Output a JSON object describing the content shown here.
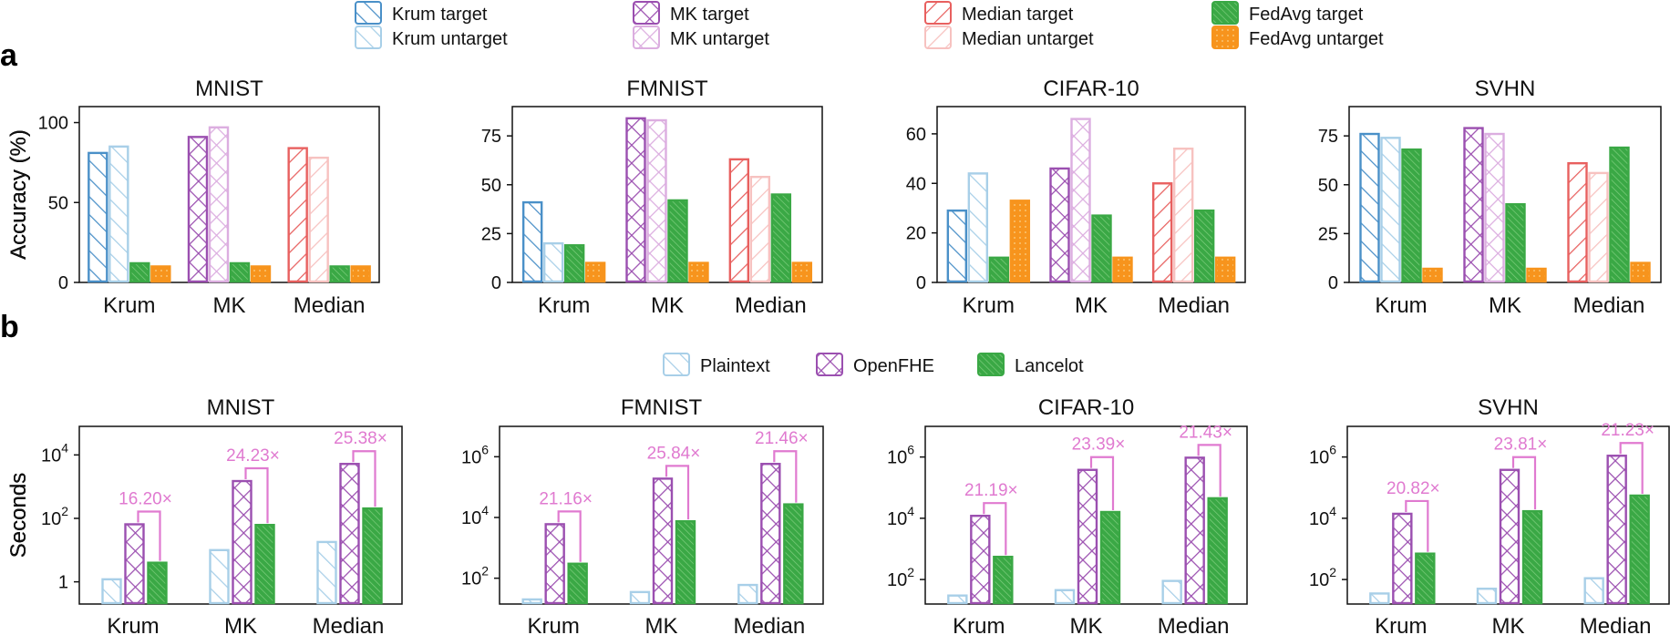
{
  "panel_a_label": "a",
  "panel_b_label": "b",
  "colors": {
    "krum": "#4a90c8",
    "krum_light": "#a8cfe8",
    "mk": "#9b4fb0",
    "mk_light": "#dcaee0",
    "median": "#e8605f",
    "median_light": "#f7c2c0",
    "fedavg": "#3aa845",
    "fedavg_fill": "#7fcf7f",
    "fedavg_untarget": "#f7941d",
    "annotation": "#e07ad0"
  },
  "legend_a": [
    {
      "label": "Krum target",
      "key": "krum_target"
    },
    {
      "label": "Krum untarget",
      "key": "krum_untarget"
    },
    {
      "label": "MK target",
      "key": "mk_target"
    },
    {
      "label": "MK untarget",
      "key": "mk_untarget"
    },
    {
      "label": "Median target",
      "key": "median_target"
    },
    {
      "label": "Median untarget",
      "key": "median_untarget"
    },
    {
      "label": "FedAvg target",
      "key": "fedavg_target"
    },
    {
      "label": "FedAvg untarget",
      "key": "fedavg_untarget"
    }
  ],
  "legend_b": [
    {
      "label": "Plaintext",
      "key": "plaintext"
    },
    {
      "label": "OpenFHE",
      "key": "openfhe"
    },
    {
      "label": "Lancelot",
      "key": "lancelot"
    }
  ],
  "chart_data": [
    {
      "panel": "a",
      "type": "bar",
      "title": "MNIST",
      "ylabel": "Accuracy (%)",
      "categories": [
        "Krum",
        "MK",
        "Median"
      ],
      "ylim": [
        0,
        110
      ],
      "yticks": [
        0,
        50,
        100
      ],
      "groups": [
        {
          "target": 81,
          "untarget": 85,
          "fedavg_target": 12,
          "fedavg_untarget": 10
        },
        {
          "target": 91,
          "untarget": 97,
          "fedavg_target": 12,
          "fedavg_untarget": 10
        },
        {
          "target": 84,
          "untarget": 78,
          "fedavg_target": 10,
          "fedavg_untarget": 10
        }
      ]
    },
    {
      "panel": "a",
      "type": "bar",
      "title": "FMNIST",
      "ylabel": "Accuracy (%)",
      "categories": [
        "Krum",
        "MK",
        "Median"
      ],
      "ylim": [
        0,
        90
      ],
      "yticks": [
        0,
        25,
        50,
        75
      ],
      "groups": [
        {
          "target": 41,
          "untarget": 20,
          "fedavg_target": 19,
          "fedavg_untarget": 10
        },
        {
          "target": 84,
          "untarget": 83,
          "fedavg_target": 42,
          "fedavg_untarget": 10
        },
        {
          "target": 63,
          "untarget": 54,
          "fedavg_target": 45,
          "fedavg_untarget": 10
        }
      ]
    },
    {
      "panel": "a",
      "type": "bar",
      "title": "CIFAR-10",
      "ylabel": "Accuracy (%)",
      "categories": [
        "Krum",
        "MK",
        "Median"
      ],
      "ylim": [
        0,
        71
      ],
      "yticks": [
        0,
        20,
        40,
        60
      ],
      "groups": [
        {
          "target": 29,
          "untarget": 44,
          "fedavg_target": 10,
          "fedavg_untarget": 33
        },
        {
          "target": 46,
          "untarget": 66,
          "fedavg_target": 27,
          "fedavg_untarget": 10
        },
        {
          "target": 40,
          "untarget": 54,
          "fedavg_target": 29,
          "fedavg_untarget": 10
        }
      ]
    },
    {
      "panel": "a",
      "type": "bar",
      "title": "SVHN",
      "ylabel": "Accuracy (%)",
      "categories": [
        "Krum",
        "MK",
        "Median"
      ],
      "ylim": [
        0,
        90
      ],
      "yticks": [
        0,
        25,
        50,
        75
      ],
      "groups": [
        {
          "target": 76,
          "untarget": 74,
          "fedavg_target": 68,
          "fedavg_untarget": 7
        },
        {
          "target": 79,
          "untarget": 76,
          "fedavg_target": 40,
          "fedavg_untarget": 7
        },
        {
          "target": 61,
          "untarget": 56,
          "fedavg_target": 69,
          "fedavg_untarget": 10
        }
      ]
    },
    {
      "panel": "b",
      "type": "bar",
      "title": "MNIST",
      "ylabel": "Seconds",
      "scale": "log",
      "categories": [
        "Krum",
        "MK",
        "Median"
      ],
      "ylog_range": [
        -0.7,
        4.9
      ],
      "yticks": [
        {
          "exp": 0,
          "label": "1"
        },
        {
          "exp": 2,
          "label": "10",
          "sup": "2"
        },
        {
          "exp": 4,
          "label": "10",
          "sup": "4"
        }
      ],
      "series": [
        {
          "name": "Plaintext",
          "values": [
            1.2,
            10,
            18
          ]
        },
        {
          "name": "OpenFHE",
          "values": [
            65,
            1500,
            5200
          ]
        },
        {
          "name": "Lancelot",
          "values": [
            4,
            62,
            205
          ]
        }
      ],
      "speedups": [
        "16.20×",
        "24.23×",
        "25.38×"
      ]
    },
    {
      "panel": "b",
      "type": "bar",
      "title": "FMNIST",
      "ylabel": "Seconds",
      "scale": "log",
      "categories": [
        "Krum",
        "MK",
        "Median"
      ],
      "ylog_range": [
        1.15,
        7.0
      ],
      "yticks": [
        {
          "exp": 2,
          "label": "10",
          "sup": "2"
        },
        {
          "exp": 4,
          "label": "10",
          "sup": "4"
        },
        {
          "exp": 6,
          "label": "10",
          "sup": "6"
        }
      ],
      "series": [
        {
          "name": "Plaintext",
          "values": [
            20,
            35,
            60
          ]
        },
        {
          "name": "OpenFHE",
          "values": [
            6000,
            190000,
            580000
          ]
        },
        {
          "name": "Lancelot",
          "values": [
            300,
            7500,
            27000
          ]
        }
      ],
      "speedups": [
        "21.16×",
        "25.84×",
        "21.46×"
      ]
    },
    {
      "panel": "b",
      "type": "bar",
      "title": "CIFAR-10",
      "ylabel": "Seconds",
      "scale": "log",
      "categories": [
        "Krum",
        "MK",
        "Median"
      ],
      "ylog_range": [
        1.2,
        7.0
      ],
      "yticks": [
        {
          "exp": 2,
          "label": "10",
          "sup": "2"
        },
        {
          "exp": 4,
          "label": "10",
          "sup": "4"
        },
        {
          "exp": 6,
          "label": "10",
          "sup": "6"
        }
      ],
      "series": [
        {
          "name": "Plaintext",
          "values": [
            30,
            45,
            90
          ]
        },
        {
          "name": "OpenFHE",
          "values": [
            12000,
            380000,
            950000
          ]
        },
        {
          "name": "Lancelot",
          "values": [
            550,
            16000,
            45000
          ]
        }
      ],
      "speedups": [
        "21.19×",
        "23.39×",
        "21.43×"
      ]
    },
    {
      "panel": "b",
      "type": "bar",
      "title": "SVHN",
      "ylabel": "Seconds",
      "scale": "log",
      "categories": [
        "Krum",
        "MK",
        "Median"
      ],
      "ylog_range": [
        1.2,
        7.0
      ],
      "yticks": [
        {
          "exp": 2,
          "label": "10",
          "sup": "2"
        },
        {
          "exp": 4,
          "label": "10",
          "sup": "4"
        },
        {
          "exp": 6,
          "label": "10",
          "sup": "6"
        }
      ],
      "series": [
        {
          "name": "Plaintext",
          "values": [
            35,
            50,
            110
          ]
        },
        {
          "name": "OpenFHE",
          "values": [
            14000,
            380000,
            1100000
          ]
        },
        {
          "name": "Lancelot",
          "values": [
            700,
            17000,
            55000
          ]
        }
      ],
      "speedups": [
        "20.82×",
        "23.81×",
        "21.23×"
      ]
    }
  ]
}
